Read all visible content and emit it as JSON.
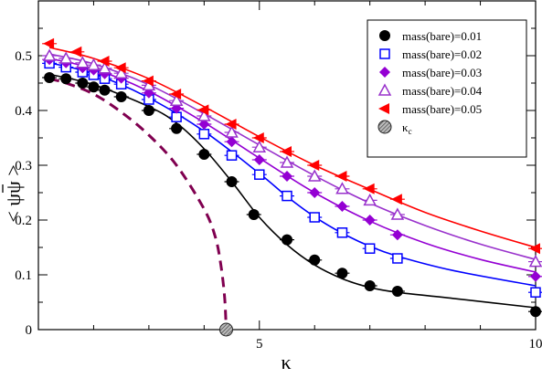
{
  "chart_data": {
    "type": "scatter",
    "title": "",
    "xlabel": "κ",
    "ylabel": "< ψψ >",
    "ylabel_bar": "ψ",
    "xlim": [
      1,
      10
    ],
    "ylim": [
      0,
      0.6
    ],
    "x_ticks": [
      5,
      10
    ],
    "x_tick_labels": [
      "5",
      "10"
    ],
    "y_ticks": [
      0,
      0.1,
      0.2,
      0.3,
      0.4,
      0.5
    ],
    "y_tick_labels": [
      "0",
      "0.1",
      "0.2",
      "0.3",
      "0.4",
      "0.5"
    ],
    "legend_position": "top-right",
    "grid": false,
    "series": [
      {
        "name": "mass(bare)=0.01",
        "marker": "filled-circle",
        "color": "#000000",
        "points": [
          [
            1.2,
            0.46
          ],
          [
            1.5,
            0.458
          ],
          [
            1.8,
            0.45
          ],
          [
            2.0,
            0.443
          ],
          [
            2.2,
            0.437
          ],
          [
            2.5,
            0.425
          ],
          [
            3.0,
            0.4
          ],
          [
            3.5,
            0.367
          ],
          [
            4.0,
            0.32
          ],
          [
            4.5,
            0.27
          ],
          [
            4.9,
            0.21
          ],
          [
            5.5,
            0.164
          ],
          [
            6.0,
            0.127
          ],
          [
            6.5,
            0.103
          ],
          [
            7.0,
            0.08
          ],
          [
            7.5,
            0.07
          ],
          [
            10.0,
            0.033
          ]
        ],
        "fit": [
          [
            1.2,
            0.466
          ],
          [
            2.0,
            0.447
          ],
          [
            3.0,
            0.407
          ],
          [
            3.5,
            0.377
          ],
          [
            4.0,
            0.33
          ],
          [
            4.5,
            0.27
          ],
          [
            5.0,
            0.205
          ],
          [
            5.5,
            0.155
          ],
          [
            6.0,
            0.118
          ],
          [
            6.5,
            0.093
          ],
          [
            7.0,
            0.077
          ],
          [
            7.5,
            0.068
          ],
          [
            8.5,
            0.057
          ],
          [
            10.0,
            0.04
          ]
        ]
      },
      {
        "name": "mass(bare)=0.02",
        "marker": "open-square",
        "color": "#0000ff",
        "points": [
          [
            1.2,
            0.486
          ],
          [
            1.5,
            0.479
          ],
          [
            1.8,
            0.47
          ],
          [
            2.0,
            0.465
          ],
          [
            2.2,
            0.458
          ],
          [
            2.5,
            0.448
          ],
          [
            3.0,
            0.42
          ],
          [
            3.5,
            0.388
          ],
          [
            4.0,
            0.357
          ],
          [
            4.5,
            0.318
          ],
          [
            5.0,
            0.283
          ],
          [
            5.5,
            0.244
          ],
          [
            6.0,
            0.205
          ],
          [
            6.5,
            0.177
          ],
          [
            7.0,
            0.148
          ],
          [
            7.5,
            0.13
          ],
          [
            10.0,
            0.068
          ]
        ],
        "fit": [
          [
            1.2,
            0.487
          ],
          [
            2.0,
            0.467
          ],
          [
            3.0,
            0.423
          ],
          [
            4.0,
            0.362
          ],
          [
            5.0,
            0.285
          ],
          [
            5.5,
            0.243
          ],
          [
            6.0,
            0.206
          ],
          [
            6.5,
            0.176
          ],
          [
            7.0,
            0.152
          ],
          [
            7.5,
            0.134
          ],
          [
            8.5,
            0.108
          ],
          [
            10.0,
            0.08
          ]
        ]
      },
      {
        "name": "mass(bare)=0.03",
        "marker": "filled-diamond",
        "color": "#9400d3",
        "points": [
          [
            1.2,
            0.493
          ],
          [
            1.5,
            0.487
          ],
          [
            1.8,
            0.478
          ],
          [
            2.0,
            0.474
          ],
          [
            2.2,
            0.467
          ],
          [
            2.5,
            0.459
          ],
          [
            3.0,
            0.432
          ],
          [
            3.5,
            0.404
          ],
          [
            4.0,
            0.375
          ],
          [
            4.5,
            0.343
          ],
          [
            5.0,
            0.31
          ],
          [
            5.5,
            0.28
          ],
          [
            6.0,
            0.25
          ],
          [
            6.5,
            0.225
          ],
          [
            7.0,
            0.2
          ],
          [
            7.5,
            0.173
          ],
          [
            10.0,
            0.097
          ]
        ],
        "fit": [
          [
            1.2,
            0.495
          ],
          [
            2.0,
            0.476
          ],
          [
            3.0,
            0.435
          ],
          [
            4.0,
            0.378
          ],
          [
            5.0,
            0.313
          ],
          [
            6.0,
            0.25
          ],
          [
            7.0,
            0.198
          ],
          [
            8.0,
            0.158
          ],
          [
            9.0,
            0.128
          ],
          [
            10.0,
            0.105
          ]
        ]
      },
      {
        "name": "mass(bare)=0.04",
        "marker": "open-triangle-up",
        "color": "#9932cc",
        "points": [
          [
            1.2,
            0.5
          ],
          [
            1.5,
            0.495
          ],
          [
            1.8,
            0.487
          ],
          [
            2.0,
            0.483
          ],
          [
            2.2,
            0.477
          ],
          [
            2.5,
            0.468
          ],
          [
            3.0,
            0.446
          ],
          [
            3.5,
            0.418
          ],
          [
            4.0,
            0.39
          ],
          [
            4.5,
            0.36
          ],
          [
            5.0,
            0.333
          ],
          [
            5.5,
            0.305
          ],
          [
            6.0,
            0.28
          ],
          [
            6.5,
            0.257
          ],
          [
            7.0,
            0.236
          ],
          [
            7.5,
            0.21
          ],
          [
            10.0,
            0.124
          ]
        ],
        "fit": [
          [
            1.2,
            0.503
          ],
          [
            2.0,
            0.485
          ],
          [
            3.0,
            0.447
          ],
          [
            4.0,
            0.394
          ],
          [
            5.0,
            0.337
          ],
          [
            6.0,
            0.281
          ],
          [
            7.0,
            0.231
          ],
          [
            8.0,
            0.19
          ],
          [
            9.0,
            0.156
          ],
          [
            10.0,
            0.128
          ]
        ]
      },
      {
        "name": "mass(bare)=0.05",
        "marker": "filled-triangle-left",
        "color": "#ff0000",
        "points": [
          [
            1.2,
            0.522
          ],
          [
            1.7,
            0.507
          ],
          [
            2.2,
            0.49
          ],
          [
            2.5,
            0.478
          ],
          [
            3.0,
            0.454
          ],
          [
            3.5,
            0.43
          ],
          [
            4.0,
            0.401
          ],
          [
            4.5,
            0.375
          ],
          [
            5.0,
            0.35
          ],
          [
            5.5,
            0.325
          ],
          [
            6.0,
            0.3
          ],
          [
            6.5,
            0.28
          ],
          [
            7.0,
            0.257
          ],
          [
            7.5,
            0.238
          ],
          [
            10.0,
            0.148
          ]
        ],
        "fit": [
          [
            1.2,
            0.515
          ],
          [
            2.0,
            0.495
          ],
          [
            3.0,
            0.458
          ],
          [
            4.0,
            0.407
          ],
          [
            5.0,
            0.352
          ],
          [
            6.0,
            0.3
          ],
          [
            7.0,
            0.256
          ],
          [
            8.0,
            0.214
          ],
          [
            9.0,
            0.18
          ],
          [
            10.0,
            0.15
          ]
        ]
      }
    ],
    "critical_curve": {
      "color": "#800050",
      "points": [
        [
          1.2,
          0.458
        ],
        [
          1.5,
          0.45
        ],
        [
          2.0,
          0.43
        ],
        [
          2.5,
          0.397
        ],
        [
          3.0,
          0.355
        ],
        [
          3.5,
          0.3
        ],
        [
          4.0,
          0.22
        ],
        [
          4.2,
          0.17
        ],
        [
          4.3,
          0.12
        ],
        [
          4.37,
          0.06
        ],
        [
          4.4,
          0.0
        ]
      ]
    },
    "kappa_c": {
      "name": "κc",
      "name_main": "κ",
      "name_sub": "c",
      "marker": "hatched-circle",
      "x": 4.4,
      "y": 0.0
    }
  }
}
